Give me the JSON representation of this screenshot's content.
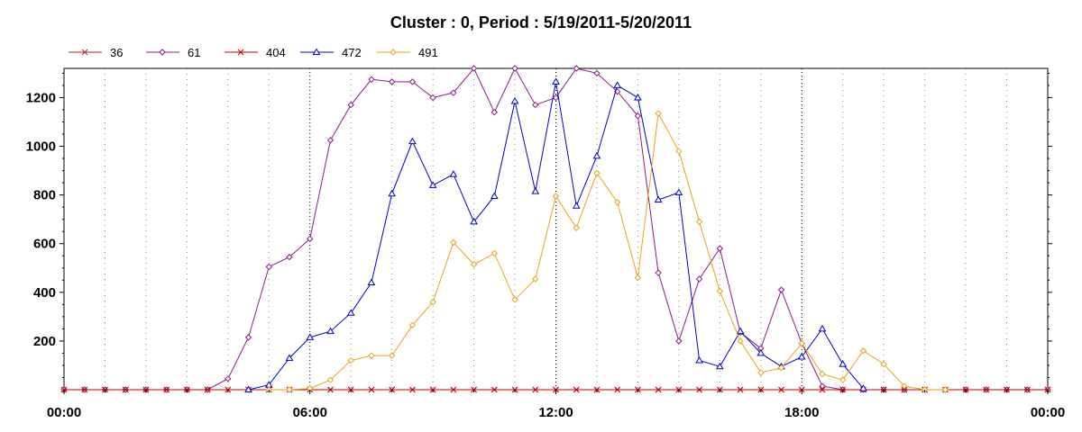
{
  "chart_data": {
    "type": "line",
    "title": "Cluster : 0, Period : 5/19/2011-5/20/2011",
    "xlabel": "",
    "ylabel": "",
    "x_range_hours": [
      0,
      24
    ],
    "ylim": [
      0,
      1320
    ],
    "x_tick_labels": [
      "00:00",
      "06:00",
      "12:00",
      "18:00",
      "00:00"
    ],
    "y_ticks": [
      200,
      400,
      600,
      800,
      1000,
      1200
    ],
    "grid": "vertical dotted lines every half-hour on the hour marks, stronger at 6-hour marks",
    "legend_position": "top-left",
    "x": [
      0,
      0.5,
      1,
      1.5,
      2,
      2.5,
      3,
      3.5,
      4,
      4.5,
      5,
      5.5,
      6,
      6.5,
      7,
      7.5,
      8,
      8.5,
      9,
      9.5,
      10,
      10.5,
      11,
      11.5,
      12,
      12.5,
      13,
      13.5,
      14,
      14.5,
      15,
      15.5,
      16,
      16.5,
      17,
      17.5,
      18,
      18.5,
      19,
      19.5,
      20,
      20.5,
      21,
      21.5,
      22,
      22.5,
      23,
      23.5,
      24
    ],
    "series": [
      {
        "name": "36",
        "color": "#a52a2a",
        "marker": "x",
        "values": [
          0,
          0,
          0,
          0,
          0,
          0,
          0,
          0,
          0,
          0,
          0,
          0,
          0,
          0,
          0,
          0,
          0,
          0,
          0,
          0,
          0,
          0,
          0,
          0,
          0,
          0,
          0,
          0,
          0,
          0,
          0,
          0,
          0,
          0,
          0,
          0,
          0,
          0,
          0,
          0,
          0,
          0,
          0,
          0,
          0,
          0,
          0,
          0,
          0
        ]
      },
      {
        "name": "61",
        "color": "#8b1a8b",
        "marker": "diamond",
        "values": [
          0,
          0,
          0,
          0,
          0,
          0,
          0,
          0,
          45,
          215,
          505,
          545,
          620,
          1025,
          1170,
          1275,
          1265,
          1265,
          1200,
          1220,
          1320,
          1140,
          1320,
          1170,
          1200,
          1320,
          1300,
          1225,
          1125,
          480,
          200,
          455,
          580,
          235,
          170,
          410,
          190,
          15,
          0,
          0,
          0,
          0,
          0,
          0,
          0,
          0,
          0,
          0,
          0
        ]
      },
      {
        "name": "404",
        "color": "#cc0000",
        "marker": "x",
        "values": [
          0,
          0,
          0,
          0,
          0,
          0,
          0,
          0,
          0,
          0,
          0,
          0,
          0,
          0,
          0,
          0,
          0,
          0,
          0,
          0,
          0,
          0,
          0,
          0,
          0,
          0,
          0,
          0,
          0,
          0,
          0,
          0,
          0,
          0,
          0,
          0,
          0,
          0,
          0,
          0,
          0,
          0,
          0,
          0,
          0,
          0,
          0,
          0,
          0
        ]
      },
      {
        "name": "472",
        "color": "#0000cc",
        "marker": "triangle",
        "values": [
          null,
          null,
          null,
          null,
          null,
          null,
          null,
          null,
          null,
          0,
          20,
          130,
          215,
          240,
          315,
          440,
          805,
          1020,
          840,
          885,
          690,
          795,
          1185,
          815,
          1265,
          755,
          960,
          1250,
          1200,
          780,
          810,
          120,
          95,
          240,
          150,
          95,
          135,
          250,
          105,
          5,
          null,
          null,
          null,
          null,
          null,
          null,
          null,
          null,
          null
        ]
      },
      {
        "name": "491",
        "color": "#e8a317",
        "marker": "diamond",
        "values": [
          null,
          null,
          null,
          null,
          null,
          null,
          null,
          null,
          null,
          null,
          0,
          0,
          5,
          40,
          120,
          140,
          140,
          265,
          360,
          605,
          515,
          560,
          370,
          455,
          795,
          665,
          890,
          770,
          460,
          1135,
          980,
          690,
          405,
          200,
          70,
          90,
          190,
          65,
          40,
          160,
          105,
          15,
          0,
          0,
          null,
          null,
          null,
          null,
          null
        ]
      }
    ]
  }
}
